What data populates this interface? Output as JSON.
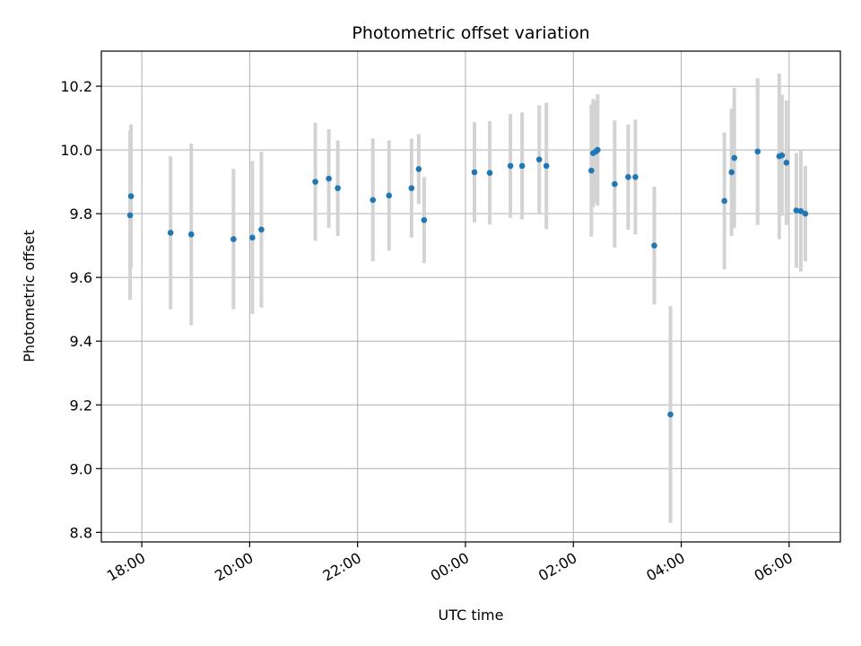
{
  "chart_data": {
    "type": "scatter",
    "title": "Photometric offset variation",
    "xlabel": "UTC time",
    "ylabel": "Photometric offset",
    "x_axis": "datetime",
    "xlim": [
      "17:15",
      "06:57"
    ],
    "ylim": [
      8.77,
      10.31
    ],
    "grid": true,
    "x_tick_labels": [
      "18:00",
      "20:00",
      "22:00",
      "00:00",
      "02:00",
      "04:00",
      "06:00"
    ],
    "y_ticks": [
      8.8,
      9.0,
      9.2,
      9.4,
      9.6,
      9.8,
      10.0,
      10.2
    ],
    "y_tick_labels": [
      "8.8",
      "9.0",
      "9.2",
      "9.4",
      "9.6",
      "9.8",
      "10.0",
      "10.2"
    ],
    "colors": {
      "points": "#1f77b4",
      "error_bars": "#d3d3d3",
      "grid": "#b0b0b0"
    },
    "points": [
      {
        "x": "17:47",
        "y": 9.795,
        "err": 0.265
      },
      {
        "x": "17:48",
        "y": 9.855,
        "err": 0.225
      },
      {
        "x": "18:32",
        "y": 9.74,
        "err": 0.24
      },
      {
        "x": "18:55",
        "y": 9.735,
        "err": 0.285
      },
      {
        "x": "19:42",
        "y": 9.72,
        "err": 0.22
      },
      {
        "x": "20:03",
        "y": 9.725,
        "err": 0.24
      },
      {
        "x": "20:13",
        "y": 9.75,
        "err": 0.245
      },
      {
        "x": "21:13",
        "y": 9.9,
        "err": 0.185
      },
      {
        "x": "21:28",
        "y": 9.91,
        "err": 0.155
      },
      {
        "x": "21:38",
        "y": 9.88,
        "err": 0.15
      },
      {
        "x": "22:17",
        "y": 9.843,
        "err": 0.193
      },
      {
        "x": "22:35",
        "y": 9.857,
        "err": 0.173
      },
      {
        "x": "23:00",
        "y": 9.88,
        "err": 0.155
      },
      {
        "x": "23:08",
        "y": 9.94,
        "err": 0.11
      },
      {
        "x": "23:14",
        "y": 9.78,
        "err": 0.135
      },
      {
        "x": "00:10",
        "y": 9.93,
        "err": 0.157
      },
      {
        "x": "00:27",
        "y": 9.928,
        "err": 0.162
      },
      {
        "x": "00:50",
        "y": 9.95,
        "err": 0.163
      },
      {
        "x": "01:03",
        "y": 9.95,
        "err": 0.168
      },
      {
        "x": "01:22",
        "y": 9.97,
        "err": 0.17
      },
      {
        "x": "01:30",
        "y": 9.95,
        "err": 0.198
      },
      {
        "x": "02:20",
        "y": 9.935,
        "err": 0.207
      },
      {
        "x": "02:22",
        "y": 9.99,
        "err": 0.17
      },
      {
        "x": "02:25",
        "y": 9.995,
        "err": 0.16
      },
      {
        "x": "02:27",
        "y": 10.0,
        "err": 0.175
      },
      {
        "x": "02:46",
        "y": 9.893,
        "err": 0.2
      },
      {
        "x": "03:01",
        "y": 9.915,
        "err": 0.165
      },
      {
        "x": "03:09",
        "y": 9.915,
        "err": 0.18
      },
      {
        "x": "03:30",
        "y": 9.7,
        "err": 0.185
      },
      {
        "x": "03:48",
        "y": 9.17,
        "err": 0.34
      },
      {
        "x": "04:48",
        "y": 9.84,
        "err": 0.215
      },
      {
        "x": "04:56",
        "y": 9.93,
        "err": 0.2
      },
      {
        "x": "04:59",
        "y": 9.975,
        "err": 0.22
      },
      {
        "x": "05:25",
        "y": 9.995,
        "err": 0.23
      },
      {
        "x": "05:49",
        "y": 9.98,
        "err": 0.26
      },
      {
        "x": "05:52",
        "y": 9.983,
        "err": 0.19
      },
      {
        "x": "05:57",
        "y": 9.96,
        "err": 0.195
      },
      {
        "x": "06:08",
        "y": 9.81,
        "err": 0.18
      },
      {
        "x": "06:13",
        "y": 9.808,
        "err": 0.19
      },
      {
        "x": "06:18",
        "y": 9.8,
        "err": 0.15
      }
    ]
  }
}
